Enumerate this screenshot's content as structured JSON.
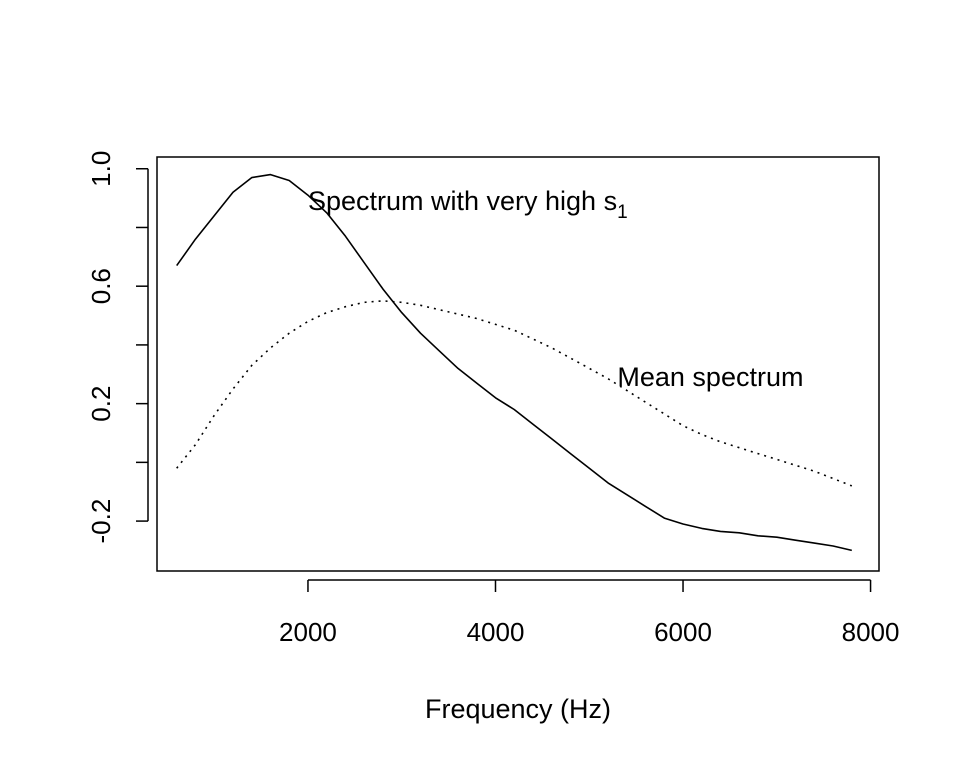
{
  "chart_data": {
    "type": "line",
    "title": "",
    "xlabel": "Frequency (Hz)",
    "ylabel": "",
    "xlim": [
      390,
      8090
    ],
    "ylim": [
      -0.37,
      1.04
    ],
    "x_ticks": [
      2000,
      4000,
      6000,
      8000
    ],
    "x_tick_labels": [
      "2000",
      "4000",
      "6000",
      "8000"
    ],
    "y_ticks": [
      -0.2,
      0.0,
      0.2,
      0.4,
      0.6,
      0.8,
      1.0
    ],
    "y_tick_labels": [
      "-0.2",
      "",
      "0.2",
      "",
      "0.6",
      "",
      "1.0"
    ],
    "grid": false,
    "series": [
      {
        "line_style": "solid",
        "x": [
          600,
          800,
          1000,
          1200,
          1400,
          1600,
          1800,
          2000,
          2200,
          2400,
          2600,
          2800,
          3000,
          3200,
          3400,
          3600,
          3800,
          4000,
          4200,
          4400,
          4600,
          4800,
          5000,
          5200,
          5400,
          5600,
          5800,
          6000,
          6200,
          6400,
          6600,
          6800,
          7000,
          7200,
          7400,
          7600,
          7800
        ],
        "y": [
          0.67,
          0.76,
          0.84,
          0.92,
          0.97,
          0.98,
          0.96,
          0.91,
          0.85,
          0.77,
          0.68,
          0.59,
          0.51,
          0.44,
          0.38,
          0.32,
          0.27,
          0.22,
          0.18,
          0.13,
          0.08,
          0.03,
          -0.02,
          -0.07,
          -0.11,
          -0.15,
          -0.19,
          -0.21,
          -0.225,
          -0.235,
          -0.24,
          -0.25,
          -0.255,
          -0.265,
          -0.275,
          -0.285,
          -0.3
        ]
      },
      {
        "line_style": "dotted",
        "x": [
          600,
          800,
          1000,
          1200,
          1400,
          1600,
          1800,
          2000,
          2200,
          2400,
          2600,
          2800,
          3000,
          3200,
          3400,
          3600,
          3800,
          4000,
          4200,
          4400,
          4600,
          4800,
          5000,
          5200,
          5400,
          5600,
          5800,
          6000,
          6200,
          6400,
          6600,
          6800,
          7000,
          7200,
          7400,
          7600,
          7800
        ],
        "y": [
          -0.02,
          0.06,
          0.16,
          0.25,
          0.33,
          0.39,
          0.44,
          0.48,
          0.51,
          0.53,
          0.545,
          0.55,
          0.545,
          0.535,
          0.52,
          0.505,
          0.49,
          0.47,
          0.45,
          0.42,
          0.39,
          0.355,
          0.32,
          0.285,
          0.245,
          0.205,
          0.165,
          0.125,
          0.095,
          0.07,
          0.05,
          0.03,
          0.01,
          -0.01,
          -0.03,
          -0.055,
          -0.08
        ]
      }
    ],
    "annotations": [
      {
        "id": "spectrum-high",
        "text": "Spectrum with very high s",
        "subscript": "1",
        "x": 2000,
        "y": 0.89,
        "anchor": "start"
      },
      {
        "id": "mean-spectrum",
        "text": "Mean spectrum",
        "x": 5300,
        "y": 0.29,
        "anchor": "start"
      }
    ]
  }
}
